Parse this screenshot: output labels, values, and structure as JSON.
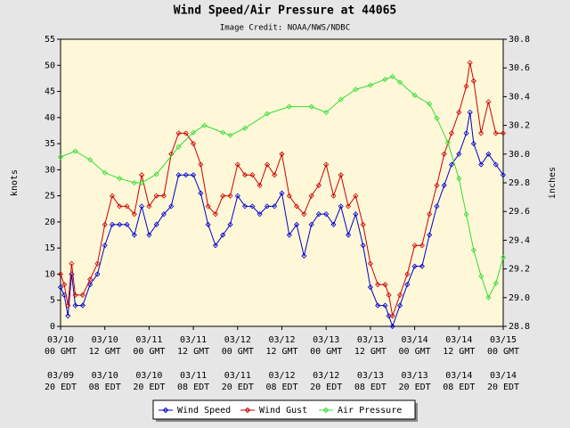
{
  "chart_data": {
    "type": "line",
    "title": "Wind Speed/Air Pressure at 44065",
    "subtitle": "Image Credit: NOAA/NWS/NDBC",
    "ylabel": "knots",
    "y2label": "inches",
    "xlim": [
      0,
      120
    ],
    "xticks": [
      {
        "value": 0,
        "label": "03/10"
      },
      {
        "value": 12,
        "label": "03/10"
      },
      {
        "value": 24,
        "label": "03/11"
      },
      {
        "value": 36,
        "label": "03/11"
      },
      {
        "value": 48,
        "label": "03/12"
      },
      {
        "value": 60,
        "label": "03/12"
      },
      {
        "value": 72,
        "label": "03/13"
      },
      {
        "value": 84,
        "label": "03/13"
      },
      {
        "value": 96,
        "label": "03/14"
      },
      {
        "value": 108,
        "label": "03/14"
      },
      {
        "value": 120,
        "label": "03/15"
      }
    ],
    "xtick_times": [
      "00 GMT",
      "12 GMT",
      "00 GMT",
      "12 GMT",
      "00 GMT",
      "12 GMT",
      "00 GMT",
      "12 GMT",
      "00 GMT",
      "12 GMT",
      "00 GMT"
    ],
    "local_dates": [
      "03/09",
      "03/10",
      "03/10",
      "03/11",
      "03/11",
      "03/12",
      "03/12",
      "03/13",
      "03/13",
      "03/14",
      "03/14"
    ],
    "local_times": [
      "20 EDT",
      "08 EDT",
      "20 EDT",
      "08 EDT",
      "20 EDT",
      "08 EDT",
      "20 EDT",
      "08 EDT",
      "20 EDT",
      "08 EDT",
      "20 EDT"
    ],
    "ylim": [
      0,
      55
    ],
    "yticks": [
      0,
      5,
      10,
      15,
      20,
      25,
      30,
      35,
      40,
      45,
      50,
      55
    ],
    "y2lim": [
      28.8,
      30.8
    ],
    "y2ticks": [
      28.8,
      {
        "value": 29.0,
        "label": "29.0"
      },
      29.2,
      29.4,
      29.6,
      29.8,
      {
        "value": 30.0,
        "label": "30.0"
      },
      30.2,
      30.4,
      30.6,
      30.8
    ],
    "x": [
      0,
      1,
      2,
      3,
      4,
      6,
      8,
      10,
      12,
      14,
      16,
      18,
      20,
      22,
      24,
      26,
      28,
      30,
      32,
      34,
      36,
      38,
      40,
      42,
      44,
      46,
      48,
      50,
      52,
      54,
      56,
      58,
      60,
      62,
      64,
      66,
      68,
      70,
      72,
      74,
      76,
      78,
      80,
      82,
      84,
      86,
      88,
      89,
      90,
      92,
      94,
      96,
      98,
      100,
      102,
      104,
      106,
      108,
      110,
      111,
      112,
      114,
      116,
      118,
      120
    ],
    "series": [
      {
        "name": "Wind Speed",
        "color": "#0000cc",
        "values": [
          7.5,
          6,
          2,
          10,
          4,
          4,
          8,
          10,
          15.5,
          19.5,
          19.5,
          19.5,
          17.5,
          23,
          17.5,
          19.5,
          21.5,
          23,
          29,
          29,
          29,
          25.5,
          19.5,
          15.5,
          17.5,
          19.5,
          25,
          23,
          23,
          21.5,
          23,
          23,
          25.5,
          17.5,
          19.5,
          13.5,
          19.5,
          21.5,
          21.5,
          19.5,
          23,
          17.5,
          21.5,
          15.5,
          7.5,
          4,
          4,
          2,
          0,
          4,
          8,
          11.5,
          11.5,
          17.5,
          23,
          27,
          31,
          33,
          37,
          41,
          35,
          31,
          33,
          31,
          29
        ]
      },
      {
        "name": "Wind Gust",
        "color": "#cc0000",
        "values": [
          10,
          8,
          4,
          12,
          6,
          6,
          9,
          12,
          19.5,
          25,
          23,
          23,
          21.5,
          29,
          23,
          25,
          25,
          33,
          37,
          37,
          35,
          31,
          23,
          21.5,
          25,
          25,
          31,
          29,
          29,
          27,
          31,
          29,
          33,
          25,
          23,
          21.5,
          25,
          27,
          31,
          25,
          29,
          23,
          25,
          19.5,
          12,
          8,
          8,
          6,
          2,
          6,
          10,
          15.5,
          15.5,
          21.5,
          27,
          33,
          37,
          41,
          46,
          50.5,
          47,
          37,
          43,
          37,
          37
        ]
      },
      {
        "name": "Air Pressure",
        "color": "#33dd33",
        "axis": "y2",
        "x": [
          0,
          4,
          8,
          12,
          16,
          20,
          22,
          26,
          32,
          36,
          39,
          44,
          46,
          50,
          56,
          62,
          68,
          72,
          76,
          80,
          84,
          88,
          90,
          92,
          96,
          100,
          102,
          105,
          108,
          110,
          112,
          114,
          116,
          118,
          120
        ],
        "values": [
          29.98,
          30.02,
          29.96,
          29.87,
          29.83,
          29.8,
          29.8,
          29.86,
          30.05,
          30.15,
          30.2,
          30.15,
          30.13,
          30.18,
          30.28,
          30.33,
          30.33,
          30.29,
          30.38,
          30.45,
          30.48,
          30.52,
          30.54,
          30.5,
          30.41,
          30.35,
          30.25,
          30.08,
          29.83,
          29.58,
          29.33,
          29.15,
          29.0,
          29.1,
          29.28
        ]
      }
    ],
    "legend": "bottom"
  }
}
